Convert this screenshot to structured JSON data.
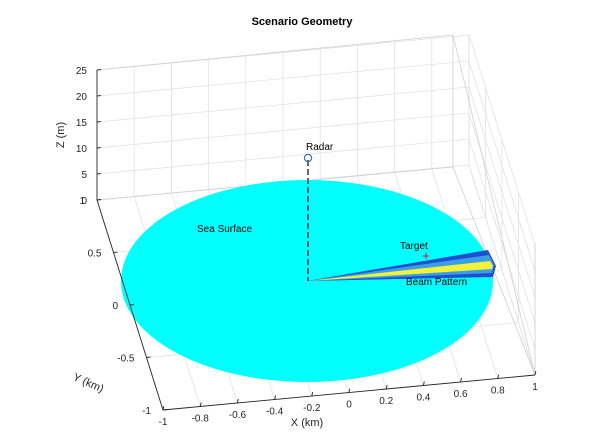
{
  "chart_data": {
    "type": "3d-surface",
    "title": "Scenario Geometry",
    "xlabel": "X (km)",
    "ylabel": "Y (km)",
    "zlabel": "Z (m)",
    "xlim": [
      -1,
      1
    ],
    "ylim": [
      -1,
      1
    ],
    "zlim": [
      0,
      25
    ],
    "x_ticks": [
      "-1",
      "-0.8",
      "-0.6",
      "-0.4",
      "-0.2",
      "0",
      "0.2",
      "0.4",
      "0.6",
      "0.8",
      "1"
    ],
    "y_ticks": [
      "-1",
      "-0.5",
      "0",
      "0.5",
      "1"
    ],
    "z_ticks": [
      "0",
      "5",
      "10",
      "15",
      "20",
      "25"
    ],
    "grid": true,
    "colors": {
      "sea": "#00ffff",
      "beam_dark": "#1f4fd1",
      "beam_mid": "#3aa0e6",
      "beam_peak": "#f2f23a",
      "radar_marker": "#3b6fb6",
      "target_marker": "#d62728"
    },
    "objects": [
      {
        "name": "Sea Surface",
        "kind": "disk",
        "center_km": [
          0,
          0
        ],
        "radius_km": 1,
        "z_m": 0
      },
      {
        "name": "Radar",
        "kind": "point",
        "x_km": 0,
        "y_km": 0,
        "z_m": 10
      },
      {
        "name": "Target",
        "kind": "point",
        "x_km": 0.6,
        "y_km": 0.05,
        "z_m": 0
      },
      {
        "name": "Beam Pattern",
        "kind": "wedge",
        "origin_km": [
          0,
          0
        ],
        "toward_km": [
          1,
          0.05
        ]
      }
    ]
  }
}
